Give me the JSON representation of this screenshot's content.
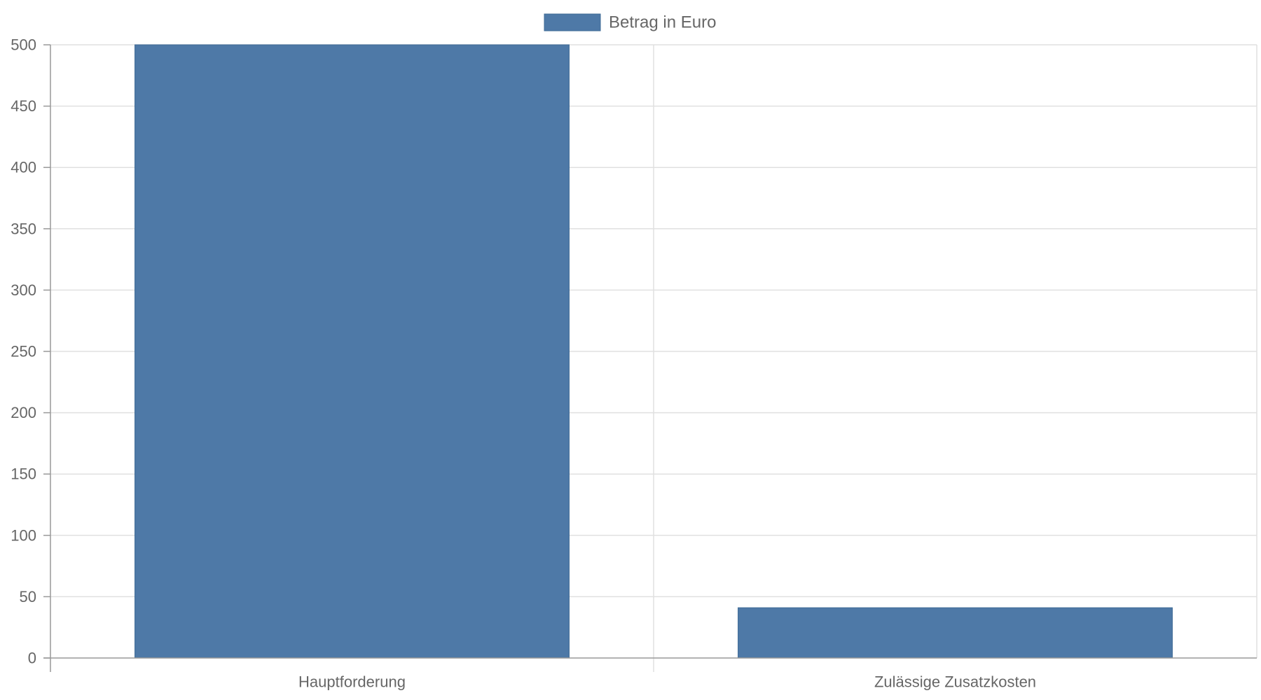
{
  "chart_data": {
    "type": "bar",
    "categories": [
      "Hauptforderung",
      "Zulässige Zusatzkosten"
    ],
    "series": [
      {
        "name": "Betrag in Euro",
        "values": [
          500,
          41
        ],
        "color": "#4e79a7"
      }
    ],
    "ylim": [
      0,
      500
    ],
    "yticks": [
      0,
      50,
      100,
      150,
      200,
      250,
      300,
      350,
      400,
      450,
      500
    ],
    "grid": true,
    "legend_position": "top-center",
    "colors": {
      "bar": "#4e79a7",
      "bar_border": "#3e6a96",
      "grid": "#e0e0e0",
      "axis": "#999999",
      "text": "#666666"
    }
  }
}
